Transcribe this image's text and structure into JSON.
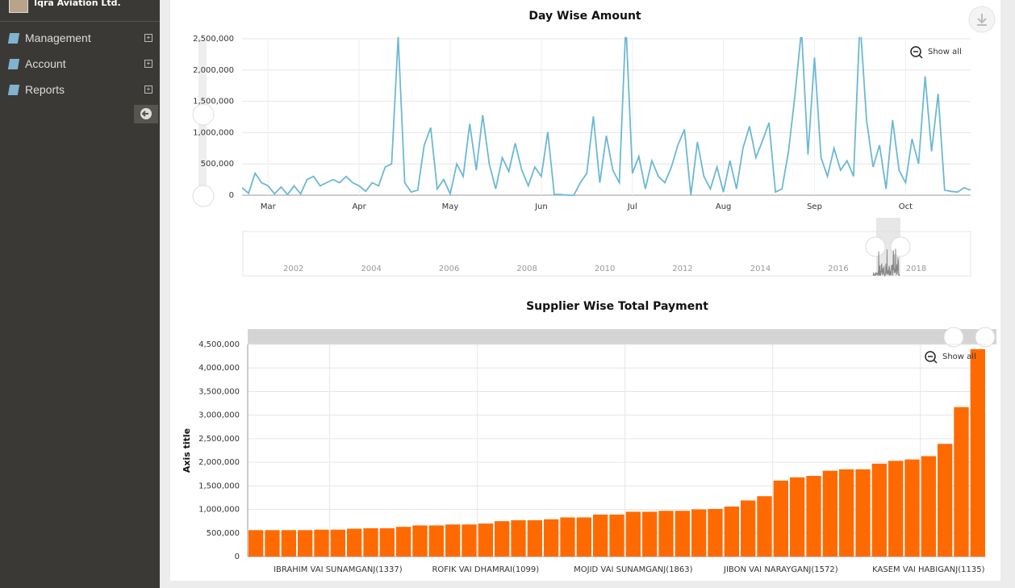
{
  "sidebar": {
    "brand": "Iqra Aviation Ltd.",
    "menu": [
      "Management",
      "Account",
      "Reports"
    ]
  },
  "chart_data": [
    {
      "type": "line",
      "title": "Day Wise Amount",
      "zoom_reset": "Show all",
      "color": "#6cb8d4",
      "grid": true,
      "categories": [
        null,
        null,
        null,
        null,
        "Mar",
        null,
        null,
        null,
        null,
        null,
        null,
        null,
        null,
        null,
        null,
        null,
        null,
        null,
        "Apr",
        null,
        null,
        null,
        null,
        null,
        null,
        null,
        null,
        null,
        null,
        null,
        null,
        null,
        "May",
        null,
        null,
        null,
        null,
        null,
        null,
        null,
        null,
        null,
        null,
        null,
        null,
        null,
        "Jun",
        null,
        null,
        null,
        null,
        null,
        null,
        null,
        null,
        null,
        null,
        null,
        null,
        null,
        "Jul",
        null,
        null,
        null,
        null,
        null,
        null,
        null,
        null,
        null,
        null,
        null,
        null,
        null,
        "Aug",
        null,
        null,
        null,
        null,
        null,
        null,
        null,
        null,
        null,
        null,
        null,
        null,
        null,
        "Sep",
        null,
        null,
        null,
        null,
        null,
        null,
        null,
        null,
        null,
        null,
        null,
        null,
        null,
        "Oct",
        null,
        null,
        null,
        null,
        null,
        null,
        null,
        null,
        null,
        null
      ],
      "values": [
        120000,
        30000,
        350000,
        200000,
        150000,
        20000,
        130000,
        10000,
        150000,
        20000,
        250000,
        300000,
        150000,
        200000,
        250000,
        200000,
        300000,
        200000,
        150000,
        60000,
        200000,
        150000,
        450000,
        500000,
        2530000,
        200000,
        50000,
        80000,
        800000,
        1080000,
        100000,
        250000,
        20000,
        500000,
        300000,
        1140000,
        400000,
        1280000,
        500000,
        100000,
        600000,
        380000,
        830000,
        400000,
        150000,
        450000,
        300000,
        1010000,
        10000,
        10000,
        0,
        0,
        200000,
        350000,
        1260000,
        200000,
        950000,
        400000,
        200000,
        2750000,
        350000,
        620000,
        100000,
        550000,
        300000,
        200000,
        450000,
        800000,
        1050000,
        0,
        850000,
        300000,
        100000,
        450000,
        50000,
        550000,
        100000,
        750000,
        1100000,
        600000,
        870000,
        1160000,
        50000,
        100000,
        700000,
        1600000,
        2650000,
        650000,
        2200000,
        600000,
        300000,
        750000,
        400000,
        550000,
        300000,
        2800000,
        1200000,
        450000,
        800000,
        100000,
        1200000,
        400000,
        200000,
        900000,
        500000,
        1900000,
        700000,
        1620000,
        80000,
        60000,
        50000,
        120000,
        80000
      ],
      "ylim": [
        0,
        2500000
      ],
      "yticks": [
        0,
        {
          "value": 500000,
          "label": "500,000"
        },
        {
          "value": 1000000,
          "label": "1,000,000"
        },
        {
          "value": 1500000,
          "label": "1,500,000"
        },
        {
          "value": 2000000,
          "label": "2,000,000"
        },
        {
          "value": 2500000,
          "label": "2,500,000"
        }
      ],
      "navigator": {
        "xlim": [
          2000.7,
          2019.4
        ],
        "xticks": [
          2002,
          2004,
          2006,
          2008,
          2010,
          2012,
          2014,
          2016,
          2018
        ]
      }
    },
    {
      "type": "bar",
      "title": "Supplier Wise Total Payment",
      "zoom_reset": "Show all",
      "ylabel": "Axis title",
      "color": "#ff6a00",
      "grid": true,
      "categories": [
        null,
        null,
        null,
        null,
        null,
        "IBRAHIM VAI SUNAMGANJ(1337)",
        null,
        null,
        null,
        null,
        null,
        null,
        null,
        null,
        "ROFIK VAI DHAMRAI(1099)",
        null,
        null,
        null,
        null,
        null,
        null,
        null,
        null,
        "MOJID VAI SUNAMGANJ(1863)",
        null,
        null,
        null,
        null,
        null,
        null,
        null,
        null,
        "JIBON VAI NARAYGANJ(1572)",
        null,
        null,
        null,
        null,
        null,
        null,
        null,
        null,
        "KASEM VAI HABIGANJ(1135)",
        null,
        null,
        null
      ],
      "values": [
        560000,
        560000,
        560000,
        560000,
        570000,
        570000,
        590000,
        600000,
        600000,
        630000,
        660000,
        660000,
        680000,
        680000,
        700000,
        750000,
        770000,
        770000,
        790000,
        830000,
        830000,
        890000,
        890000,
        950000,
        950000,
        970000,
        970000,
        1000000,
        1010000,
        1060000,
        1190000,
        1280000,
        1610000,
        1680000,
        1710000,
        1820000,
        1850000,
        1850000,
        1970000,
        2030000,
        2060000,
        2130000,
        2390000,
        3170000,
        4400000
      ],
      "ylim": [
        0,
        4500000
      ],
      "yticks": [
        0,
        {
          "value": 500000,
          "label": "500,000"
        },
        {
          "value": 1000000,
          "label": "1,000,000"
        },
        {
          "value": 1500000,
          "label": "1,500,000"
        },
        {
          "value": 2000000,
          "label": "2,000,000"
        },
        {
          "value": 2500000,
          "label": "2,500,000"
        },
        {
          "value": 3000000,
          "label": "3,000,000"
        },
        {
          "value": 3500000,
          "label": "3,500,000"
        },
        {
          "value": 4000000,
          "label": "4,000,000"
        },
        {
          "value": 4500000,
          "label": "4,500,000"
        }
      ]
    }
  ]
}
